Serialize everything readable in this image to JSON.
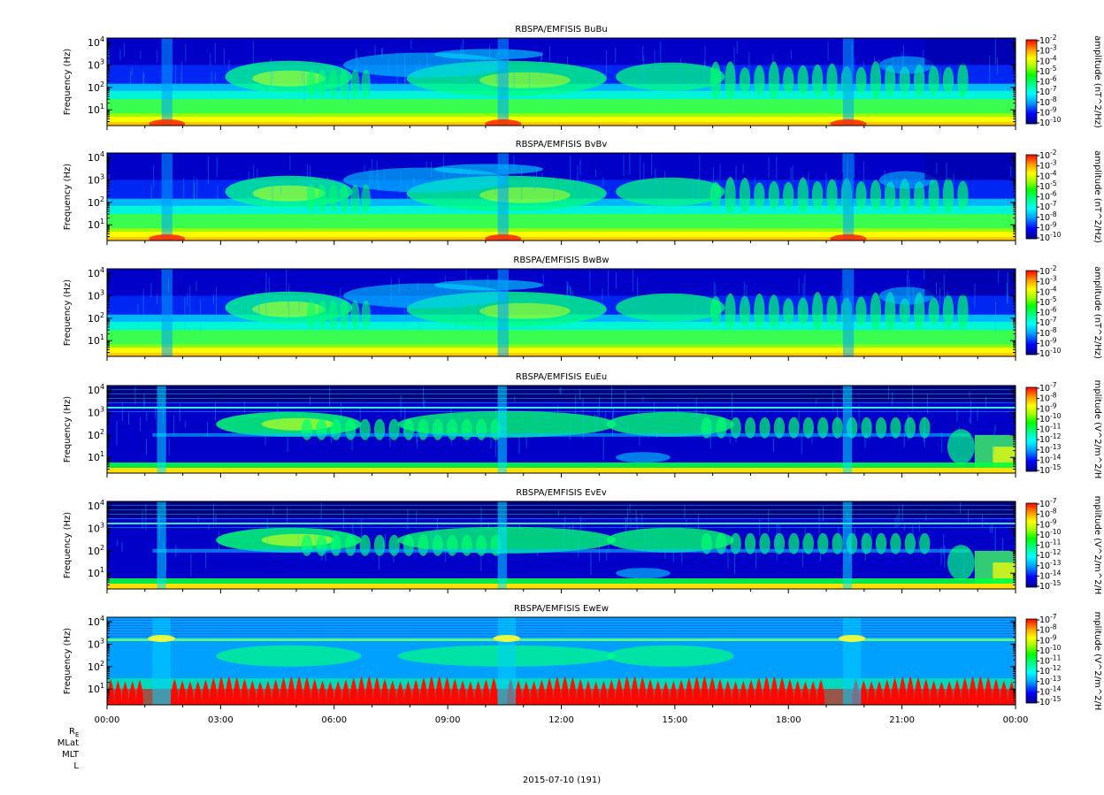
{
  "chart_data": {
    "type": "heatmap",
    "title": "",
    "date_label": "2015-07-10 (191)",
    "x_ticks": [
      "00:00",
      "03:00",
      "06:00",
      "09:00",
      "12:00",
      "15:00",
      "18:00",
      "21:00",
      "00:00"
    ],
    "x_range_hours": [
      0,
      24
    ],
    "ephemeris_labels": {
      "re_main": "R",
      "re_sub": "E",
      "mlat": "MLat",
      "mlt": "MLT",
      "l": "L"
    },
    "colormap": [
      "#00008b",
      "#0000ff",
      "#00a0ff",
      "#00ffff",
      "#00ff80",
      "#00ff00",
      "#a0ff00",
      "#ffff00",
      "#ffa000",
      "#ff0000"
    ],
    "panels": [
      {
        "title": "RBSPA/EMFISIS  BuBu",
        "ylabel": "Frequency (Hz)",
        "y_scale": "log",
        "y_ticks": [
          {
            "base": "10",
            "exp": "1"
          },
          {
            "base": "10",
            "exp": "2"
          },
          {
            "base": "10",
            "exp": "3"
          },
          {
            "base": "10",
            "exp": "4"
          }
        ],
        "colorbar_label": "amplitude (nT^2/Hz)",
        "colorbar_ticks": [
          {
            "base": "10",
            "exp": "-2"
          },
          {
            "base": "10",
            "exp": "-3"
          },
          {
            "base": "10",
            "exp": "-4"
          },
          {
            "base": "10",
            "exp": "-5"
          },
          {
            "base": "10",
            "exp": "-6"
          },
          {
            "base": "10",
            "exp": "-7"
          },
          {
            "base": "10",
            "exp": "-8"
          },
          {
            "base": "10",
            "exp": "-9"
          },
          {
            "base": "10",
            "exp": "-10"
          }
        ],
        "kind": "B"
      },
      {
        "title": "RBSPA/EMFISIS  BvBv",
        "ylabel": "Frequency (Hz)",
        "y_scale": "log",
        "y_ticks": [
          {
            "base": "10",
            "exp": "1"
          },
          {
            "base": "10",
            "exp": "2"
          },
          {
            "base": "10",
            "exp": "3"
          },
          {
            "base": "10",
            "exp": "4"
          }
        ],
        "colorbar_label": "amplitude (nT^2/Hz)",
        "colorbar_ticks": [
          {
            "base": "10",
            "exp": "-2"
          },
          {
            "base": "10",
            "exp": "-3"
          },
          {
            "base": "10",
            "exp": "-4"
          },
          {
            "base": "10",
            "exp": "-5"
          },
          {
            "base": "10",
            "exp": "-6"
          },
          {
            "base": "10",
            "exp": "-7"
          },
          {
            "base": "10",
            "exp": "-8"
          },
          {
            "base": "10",
            "exp": "-9"
          },
          {
            "base": "10",
            "exp": "-10"
          }
        ],
        "kind": "B"
      },
      {
        "title": "RBSPA/EMFISIS  BwBw",
        "ylabel": "Frequency (Hz)",
        "y_scale": "log",
        "y_ticks": [
          {
            "base": "10",
            "exp": "1"
          },
          {
            "base": "10",
            "exp": "2"
          },
          {
            "base": "10",
            "exp": "3"
          },
          {
            "base": "10",
            "exp": "4"
          }
        ],
        "colorbar_label": "amplitude (nT^2/Hz)",
        "colorbar_ticks": [
          {
            "base": "10",
            "exp": "-2"
          },
          {
            "base": "10",
            "exp": "-3"
          },
          {
            "base": "10",
            "exp": "-4"
          },
          {
            "base": "10",
            "exp": "-5"
          },
          {
            "base": "10",
            "exp": "-6"
          },
          {
            "base": "10",
            "exp": "-7"
          },
          {
            "base": "10",
            "exp": "-8"
          },
          {
            "base": "10",
            "exp": "-9"
          },
          {
            "base": "10",
            "exp": "-10"
          }
        ],
        "kind": "Bw"
      },
      {
        "title": "RBSPA/EMFISIS  EuEu",
        "ylabel": "Frequency (Hz)",
        "y_scale": "log",
        "y_ticks": [
          {
            "base": "10",
            "exp": "1"
          },
          {
            "base": "10",
            "exp": "2"
          },
          {
            "base": "10",
            "exp": "3"
          },
          {
            "base": "10",
            "exp": "4"
          }
        ],
        "colorbar_label": "mplitude (V^2/m^2/H",
        "colorbar_ticks": [
          {
            "base": "10",
            "exp": "-7"
          },
          {
            "base": "10",
            "exp": "-8"
          },
          {
            "base": "10",
            "exp": "-9"
          },
          {
            "base": "10",
            "exp": "-10"
          },
          {
            "base": "10",
            "exp": "-11"
          },
          {
            "base": "10",
            "exp": "-12"
          },
          {
            "base": "10",
            "exp": "-13"
          },
          {
            "base": "10",
            "exp": "-14"
          },
          {
            "base": "10",
            "exp": "-15"
          }
        ],
        "kind": "E"
      },
      {
        "title": "RBSPA/EMFISIS  EvEv",
        "ylabel": "Frequency (Hz)",
        "y_scale": "log",
        "y_ticks": [
          {
            "base": "10",
            "exp": "1"
          },
          {
            "base": "10",
            "exp": "2"
          },
          {
            "base": "10",
            "exp": "3"
          },
          {
            "base": "10",
            "exp": "4"
          }
        ],
        "colorbar_label": "mplitude (V^2/m^2/H",
        "colorbar_ticks": [
          {
            "base": "10",
            "exp": "-7"
          },
          {
            "base": "10",
            "exp": "-8"
          },
          {
            "base": "10",
            "exp": "-9"
          },
          {
            "base": "10",
            "exp": "-10"
          },
          {
            "base": "10",
            "exp": "-11"
          },
          {
            "base": "10",
            "exp": "-12"
          },
          {
            "base": "10",
            "exp": "-13"
          },
          {
            "base": "10",
            "exp": "-14"
          },
          {
            "base": "10",
            "exp": "-15"
          }
        ],
        "kind": "E"
      },
      {
        "title": "RBSPA/EMFISIS  EwEw",
        "ylabel": "Frequency (Hz)",
        "y_scale": "log",
        "y_ticks": [
          {
            "base": "10",
            "exp": "1"
          },
          {
            "base": "10",
            "exp": "2"
          },
          {
            "base": "10",
            "exp": "3"
          },
          {
            "base": "10",
            "exp": "4"
          }
        ],
        "colorbar_label": "mplitude (V^2/m^2/H",
        "colorbar_ticks": [
          {
            "base": "10",
            "exp": "-7"
          },
          {
            "base": "10",
            "exp": "-8"
          },
          {
            "base": "10",
            "exp": "-9"
          },
          {
            "base": "10",
            "exp": "-10"
          },
          {
            "base": "10",
            "exp": "-11"
          },
          {
            "base": "10",
            "exp": "-12"
          },
          {
            "base": "10",
            "exp": "-13"
          },
          {
            "base": "10",
            "exp": "-14"
          },
          {
            "base": "10",
            "exp": "-15"
          }
        ],
        "kind": "Ew"
      }
    ]
  }
}
